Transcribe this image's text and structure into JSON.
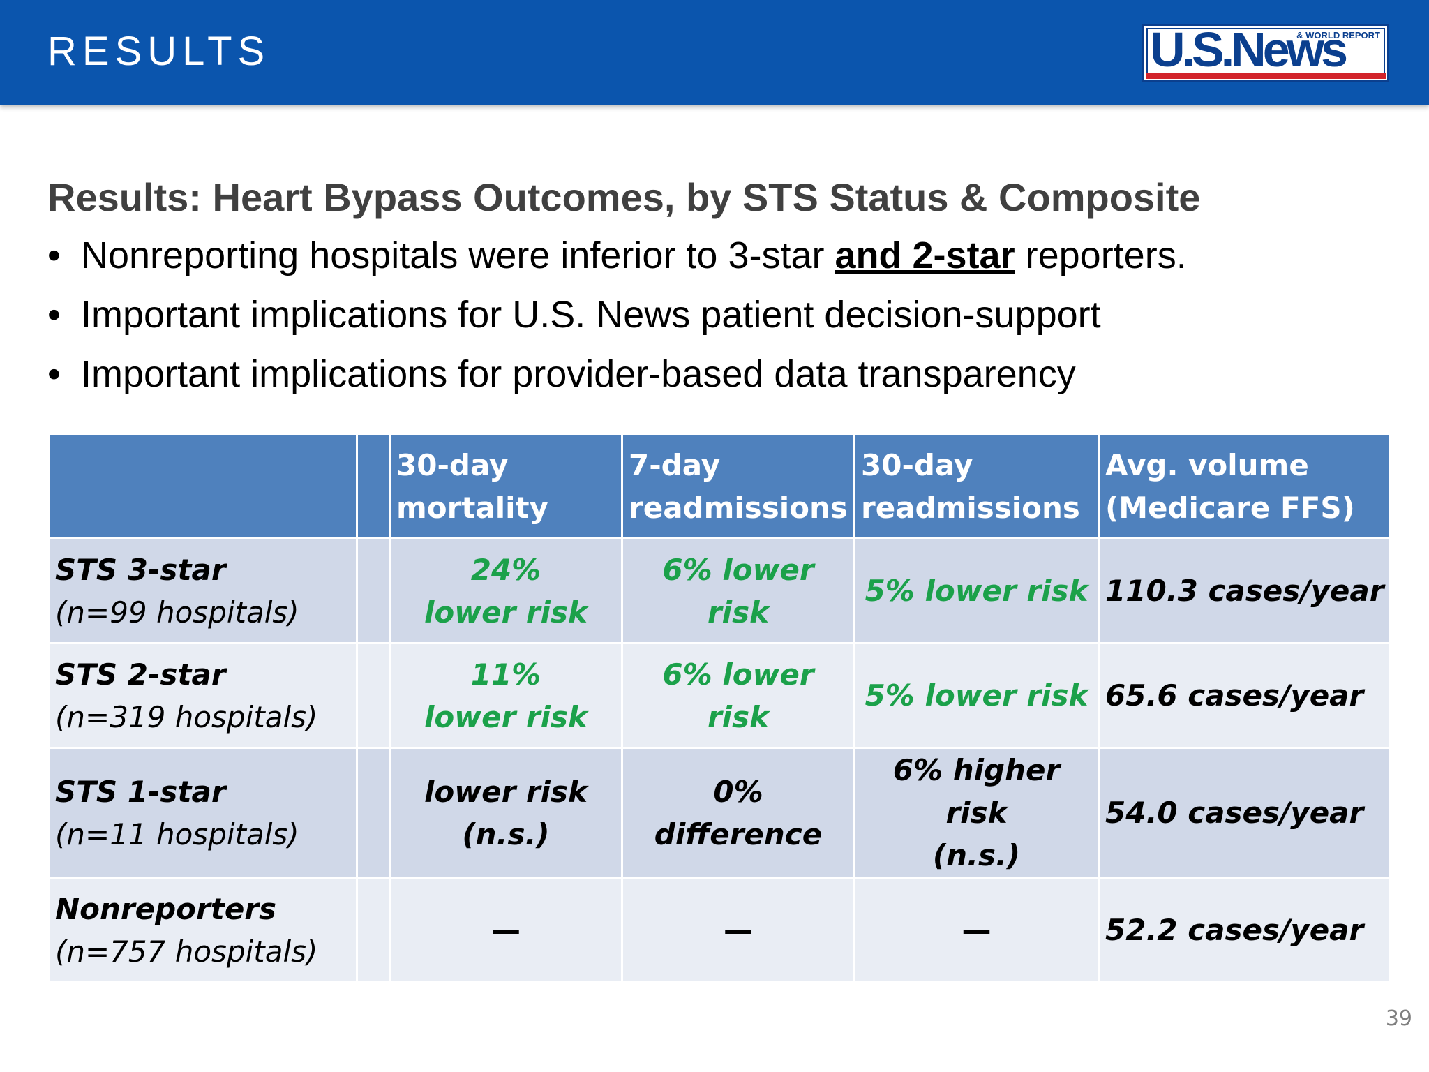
{
  "header": {
    "title": "RESULTS"
  },
  "logo": {
    "main_text": "U.S.News",
    "tagline": "& WORLD REPORT"
  },
  "subtitle": "Results: Heart Bypass Outcomes, by STS Status & Composite",
  "bullets": [
    {
      "before": "Nonreporting hospitals were inferior to 3-star ",
      "emphasis": "and 2-star",
      "after": " reporters."
    },
    {
      "text": "Important implications for U.S. News patient decision-support"
    },
    {
      "text": "Important implications for provider-based data transparency"
    }
  ],
  "table": {
    "headers": [
      "",
      "",
      "30-day mortality",
      "7-day readmissions",
      "30-day readmissions",
      "Avg. volume (Medicare FFS)"
    ],
    "header_lines": {
      "mortality": [
        "30-day",
        "mortality"
      ],
      "read7": [
        "7-day",
        "readmissions"
      ],
      "read30": [
        "30-day",
        "readmissions"
      ],
      "volume": [
        "Avg. volume",
        "(Medicare FFS)"
      ]
    },
    "rows": [
      {
        "label": "STS 3-star",
        "n": "(n=99 hospitals)",
        "mortality": [
          "24%",
          "lower risk"
        ],
        "read7": "6% lower risk",
        "read30": [
          "5% lower risk"
        ],
        "volume": "110.3 cases/year"
      },
      {
        "label": "STS 2-star",
        "n": "(n=319 hospitals)",
        "mortality": [
          "11%",
          "lower risk"
        ],
        "read7": "6% lower risk",
        "read30": [
          "5% lower risk"
        ],
        "volume": "65.6 cases/year"
      },
      {
        "label": "STS 1-star",
        "n": "(n=11 hospitals)",
        "mortality": [
          "lower risk",
          "(n.s.)"
        ],
        "read7": "0% difference",
        "read30": [
          "6% higher risk",
          "(n.s.)"
        ],
        "volume": "54.0 cases/year"
      },
      {
        "label": "Nonreporters",
        "n": "(n=757 hospitals)",
        "mortality": [
          "—"
        ],
        "read7": "—",
        "read30": [
          "—"
        ],
        "volume": "52.2 cases/year"
      }
    ]
  },
  "colors": {
    "header_bg": "#0b55ad",
    "table_header": "#4f81bd",
    "row_odd": "#d0d8e8",
    "row_even": "#e9edf4",
    "green": "#1ba14a"
  },
  "page_number": "39"
}
